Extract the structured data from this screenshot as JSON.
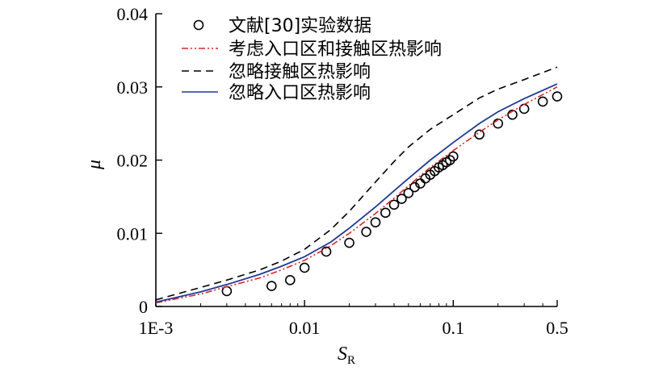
{
  "chart_data": {
    "type": "line",
    "xscale": "log",
    "xlim": [
      0.001,
      0.5
    ],
    "ylim": [
      0,
      0.04
    ],
    "xticks": [
      0.001,
      0.01,
      0.1,
      0.5
    ],
    "xtick_labels": [
      "1E-3",
      "0.01",
      "0.1",
      "0.5"
    ],
    "yticks": [
      0,
      0.01,
      0.02,
      0.03,
      0.04
    ],
    "ytick_labels": [
      "0",
      "0.01",
      "0.02",
      "0.03",
      "0.04"
    ],
    "xlabel": "S",
    "xlabel_sub": "R",
    "ylabel": "μ",
    "grid": false,
    "legend_position": "top-left",
    "series": [
      {
        "name": "文献[30]实验数据",
        "kind": "scatter",
        "marker": "open-circle",
        "color": "#000000",
        "x": [
          0.003,
          0.006,
          0.008,
          0.01,
          0.014,
          0.02,
          0.026,
          0.03,
          0.035,
          0.04,
          0.045,
          0.05,
          0.055,
          0.06,
          0.065,
          0.07,
          0.075,
          0.08,
          0.085,
          0.09,
          0.095,
          0.1,
          0.15,
          0.2,
          0.25,
          0.3,
          0.4,
          0.5
        ],
        "y": [
          0.0021,
          0.0028,
          0.0036,
          0.0053,
          0.0075,
          0.0087,
          0.0102,
          0.0115,
          0.0128,
          0.0139,
          0.0147,
          0.0155,
          0.0163,
          0.0168,
          0.0175,
          0.018,
          0.0185,
          0.019,
          0.0193,
          0.0197,
          0.02,
          0.0205,
          0.0235,
          0.025,
          0.0262,
          0.027,
          0.028,
          0.0287
        ]
      },
      {
        "name": "考虑入口区和接触区热影响",
        "kind": "line",
        "style": "dash-dot-dot",
        "color": "#d62728",
        "x": [
          0.001,
          0.002,
          0.003,
          0.005,
          0.007,
          0.01,
          0.015,
          0.02,
          0.03,
          0.04,
          0.05,
          0.07,
          0.1,
          0.15,
          0.2,
          0.3,
          0.5
        ],
        "y": [
          0.0005,
          0.0017,
          0.0027,
          0.0039,
          0.005,
          0.0063,
          0.0083,
          0.01,
          0.0127,
          0.0148,
          0.0165,
          0.019,
          0.0213,
          0.0238,
          0.0255,
          0.0276,
          0.03
        ]
      },
      {
        "name": "忽略接触区热影响",
        "kind": "line",
        "style": "dashed",
        "color": "#000000",
        "x": [
          0.001,
          0.002,
          0.003,
          0.005,
          0.007,
          0.01,
          0.015,
          0.02,
          0.03,
          0.04,
          0.05,
          0.07,
          0.1,
          0.15,
          0.2,
          0.3,
          0.5
        ],
        "y": [
          0.0009,
          0.0026,
          0.0036,
          0.005,
          0.0062,
          0.0078,
          0.0105,
          0.013,
          0.017,
          0.0198,
          0.0218,
          0.0242,
          0.0262,
          0.0285,
          0.0297,
          0.031,
          0.0327
        ]
      },
      {
        "name": "忽略入口区热影响",
        "kind": "line",
        "style": "solid",
        "color": "#1f3a93",
        "x": [
          0.001,
          0.002,
          0.003,
          0.005,
          0.007,
          0.01,
          0.015,
          0.02,
          0.03,
          0.04,
          0.05,
          0.07,
          0.1,
          0.15,
          0.2,
          0.3,
          0.5
        ],
        "y": [
          0.0006,
          0.002,
          0.003,
          0.0044,
          0.0055,
          0.0068,
          0.0088,
          0.0107,
          0.0136,
          0.0158,
          0.0175,
          0.02,
          0.0224,
          0.025,
          0.0266,
          0.0284,
          0.0304
        ]
      }
    ]
  }
}
